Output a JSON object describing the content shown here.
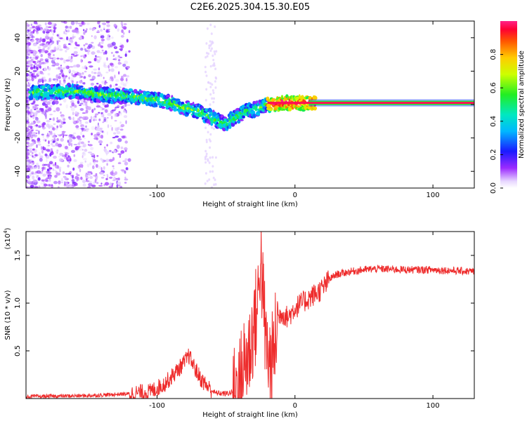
{
  "title": "C2E6.2025.304.15.30.E05",
  "chart_data": [
    {
      "type": "heatmap",
      "title": "C2E6.2025.304.15.30.E05",
      "xlabel": "Height of straight line (km)",
      "ylabel": "Frequency (Hz)",
      "xlim": [
        -195,
        130
      ],
      "ylim": [
        -50,
        50
      ],
      "xticks": [
        -100,
        0,
        100
      ],
      "yticks": [
        -40,
        -20,
        0,
        20,
        40
      ],
      "colorbar": {
        "label": "Normalized spectral amplitude",
        "range": [
          0,
          1
        ],
        "ticks": [
          "0.0",
          "0.2",
          "0.4",
          "0.6",
          "0.8"
        ]
      },
      "ridge": {
        "x": [
          -190,
          -170,
          -160,
          -150,
          -140,
          -130,
          -120,
          -110,
          -100,
          -90,
          -80,
          -70,
          -60,
          -50,
          -45,
          -40,
          -35,
          -30,
          -25,
          -20,
          -15,
          -10,
          0,
          10,
          20,
          130
        ],
        "freq_hz": [
          7,
          8,
          8,
          7,
          6,
          5,
          5,
          4,
          3,
          1,
          -2,
          -4,
          -8,
          -12,
          -8,
          -6,
          -4,
          -3,
          -2,
          0,
          0,
          1,
          1,
          1,
          1,
          1
        ]
      }
    },
    {
      "type": "line",
      "xlabel": "Height of straight line (km)",
      "ylabel": "SNR (10 * v/v)",
      "y_multiplier": "(x10",
      "y_multiplier_exp": "4",
      "xlim": [
        -195,
        130
      ],
      "ylim": [
        0,
        1.75
      ],
      "xticks": [
        -100,
        0,
        100
      ],
      "yticks": [
        0.5,
        1.0,
        1.5
      ],
      "ytick_labels": [
        "0.5",
        "1.0",
        "1.5"
      ],
      "series": [
        {
          "name": "SNR",
          "color": "#ee2b2b",
          "x": [
            -195,
            -150,
            -120,
            -105,
            -95,
            -90,
            -85,
            -80,
            -77,
            -72,
            -68,
            -63,
            -58,
            -50,
            -45,
            -40,
            -37,
            -33,
            -30,
            -27,
            -25,
            -23,
            -21,
            -19,
            -17,
            -15,
            -13,
            -10,
            -5,
            0,
            5,
            10,
            15,
            20,
            25,
            30,
            40,
            50,
            60,
            80,
            100,
            130
          ],
          "y": [
            0.02,
            0.03,
            0.05,
            0.07,
            0.15,
            0.22,
            0.3,
            0.38,
            0.45,
            0.3,
            0.2,
            0.12,
            0.06,
            0.05,
            0.07,
            0.15,
            0.35,
            0.5,
            0.75,
            0.95,
            1.55,
            1.0,
            0.55,
            0.4,
            0.35,
            0.5,
            0.8,
            0.9,
            0.85,
            0.95,
            1.0,
            1.05,
            1.1,
            1.15,
            1.25,
            1.3,
            1.33,
            1.35,
            1.36,
            1.35,
            1.35,
            1.33
          ]
        }
      ]
    }
  ]
}
